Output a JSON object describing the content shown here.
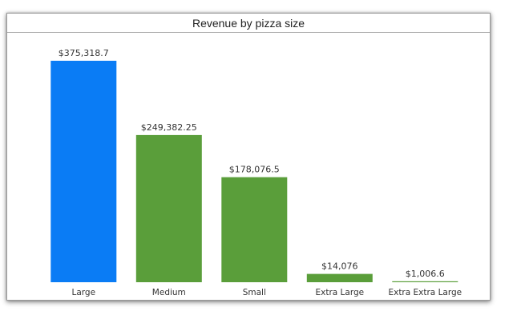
{
  "chart_data": {
    "type": "bar",
    "title": "Revenue by pizza size",
    "categories": [
      "Large",
      "Medium",
      "Small",
      "Extra Large",
      "Extra Extra Large"
    ],
    "values": [
      375318.7,
      249382.25,
      178076.5,
      14076,
      1006.6
    ],
    "data_labels": [
      "$375,318.7",
      "$249,382.25",
      "$178,076.5",
      "$14,076",
      "$1,006.6"
    ],
    "colors": [
      "#0a7cf5",
      "#5a9e3a",
      "#5a9e3a",
      "#5a9e3a",
      "#5a9e3a"
    ],
    "xlabel": "",
    "ylabel": "",
    "ylim": [
      0,
      375318.7
    ],
    "grid": false,
    "legend": "none"
  }
}
